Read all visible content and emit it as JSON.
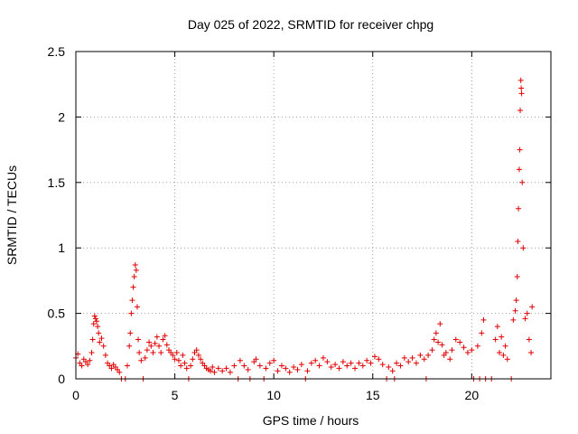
{
  "chart_data": {
    "type": "scatter",
    "title": "Day 025 of 2022, SRMTID for receiver chpg",
    "xlabel": "GPS time / hours",
    "ylabel": "SRMTID / TECUs",
    "xlim": [
      0,
      24
    ],
    "ylim": [
      0,
      2.5
    ],
    "x_ticks": [
      0,
      5,
      10,
      15,
      20
    ],
    "x_tick_labels": [
      "0",
      "5",
      "10",
      "15",
      "20"
    ],
    "y_ticks": [
      0,
      0.5,
      1,
      1.5,
      2,
      2.5
    ],
    "y_tick_labels": [
      "0",
      "0.5",
      "1",
      "1.5",
      "2",
      "2.5"
    ],
    "grid": true,
    "series": [
      {
        "name": "SRMTID",
        "color": "#e00000",
        "marker": "plus",
        "points": [
          [
            0.0,
            0.16
          ],
          [
            0.1,
            0.19
          ],
          [
            0.2,
            0.12
          ],
          [
            0.3,
            0.1
          ],
          [
            0.4,
            0.15
          ],
          [
            0.5,
            0.13
          ],
          [
            0.6,
            0.11
          ],
          [
            0.7,
            0.14
          ],
          [
            0.8,
            0.2
          ],
          [
            0.85,
            0.3
          ],
          [
            0.9,
            0.42
          ],
          [
            0.95,
            0.48
          ],
          [
            1.0,
            0.46
          ],
          [
            1.05,
            0.44
          ],
          [
            1.1,
            0.4
          ],
          [
            1.15,
            0.35
          ],
          [
            1.2,
            0.28
          ],
          [
            1.3,
            0.31
          ],
          [
            1.4,
            0.25
          ],
          [
            1.5,
            0.18
          ],
          [
            1.6,
            0.12
          ],
          [
            1.7,
            0.1
          ],
          [
            1.8,
            0.08
          ],
          [
            1.9,
            0.11
          ],
          [
            2.0,
            0.09
          ],
          [
            2.1,
            0.07
          ],
          [
            2.2,
            0.05
          ],
          [
            2.3,
            0.0
          ],
          [
            2.5,
            0.0
          ],
          [
            2.6,
            0.1
          ],
          [
            2.7,
            0.25
          ],
          [
            2.75,
            0.35
          ],
          [
            2.8,
            0.5
          ],
          [
            2.85,
            0.6
          ],
          [
            2.9,
            0.7
          ],
          [
            2.95,
            0.78
          ],
          [
            3.0,
            0.87
          ],
          [
            3.05,
            0.83
          ],
          [
            3.1,
            0.55
          ],
          [
            3.15,
            0.3
          ],
          [
            3.2,
            0.2
          ],
          [
            3.3,
            0.14
          ],
          [
            3.4,
            0.0
          ],
          [
            3.5,
            0.16
          ],
          [
            3.6,
            0.22
          ],
          [
            3.7,
            0.28
          ],
          [
            3.8,
            0.25
          ],
          [
            3.9,
            0.2
          ],
          [
            4.0,
            0.27
          ],
          [
            4.1,
            0.32
          ],
          [
            4.2,
            0.25
          ],
          [
            4.3,
            0.2
          ],
          [
            4.4,
            0.3
          ],
          [
            4.5,
            0.33
          ],
          [
            4.6,
            0.26
          ],
          [
            4.7,
            0.22
          ],
          [
            4.8,
            0.2
          ],
          [
            4.9,
            0.18
          ],
          [
            5.0,
            0.15
          ],
          [
            5.1,
            0.2
          ],
          [
            5.2,
            0.14
          ],
          [
            5.3,
            0.1
          ],
          [
            5.4,
            0.18
          ],
          [
            5.5,
            0.12
          ],
          [
            5.6,
            0.08
          ],
          [
            5.7,
            0.0
          ],
          [
            5.8,
            0.1
          ],
          [
            5.9,
            0.15
          ],
          [
            6.0,
            0.2
          ],
          [
            6.1,
            0.22
          ],
          [
            6.2,
            0.18
          ],
          [
            6.3,
            0.15
          ],
          [
            6.4,
            0.12
          ],
          [
            6.5,
            0.1
          ],
          [
            6.6,
            0.08
          ],
          [
            6.7,
            0.07
          ],
          [
            6.8,
            0.06
          ],
          [
            6.9,
            0.09
          ],
          [
            7.0,
            0.05
          ],
          [
            7.2,
            0.08
          ],
          [
            7.4,
            0.06
          ],
          [
            7.6,
            0.08
          ],
          [
            7.8,
            0.05
          ],
          [
            8.0,
            0.1
          ],
          [
            8.2,
            0.0
          ],
          [
            8.3,
            0.14
          ],
          [
            8.5,
            0.1
          ],
          [
            8.7,
            0.07
          ],
          [
            8.8,
            0.0
          ],
          [
            9.0,
            0.13
          ],
          [
            9.1,
            0.15
          ],
          [
            9.3,
            0.1
          ],
          [
            9.5,
            0.0
          ],
          [
            9.6,
            0.08
          ],
          [
            9.8,
            0.12
          ],
          [
            10.0,
            0.14
          ],
          [
            10.2,
            0.06
          ],
          [
            10.4,
            0.1
          ],
          [
            10.6,
            0.08
          ],
          [
            10.8,
            0.05
          ],
          [
            11.0,
            0.09
          ],
          [
            11.2,
            0.07
          ],
          [
            11.4,
            0.11
          ],
          [
            11.6,
            0.0
          ],
          [
            11.7,
            0.06
          ],
          [
            11.9,
            0.12
          ],
          [
            12.1,
            0.14
          ],
          [
            12.3,
            0.1
          ],
          [
            12.5,
            0.16
          ],
          [
            12.7,
            0.13
          ],
          [
            12.9,
            0.09
          ],
          [
            13.1,
            0.11
          ],
          [
            13.3,
            0.08
          ],
          [
            13.5,
            0.13
          ],
          [
            13.7,
            0.1
          ],
          [
            13.9,
            0.12
          ],
          [
            14.1,
            0.08
          ],
          [
            14.3,
            0.12
          ],
          [
            14.5,
            0.1
          ],
          [
            14.7,
            0.14
          ],
          [
            14.9,
            0.12
          ],
          [
            15.1,
            0.17
          ],
          [
            15.3,
            0.15
          ],
          [
            15.5,
            0.11
          ],
          [
            15.7,
            0.0
          ],
          [
            15.8,
            0.09
          ],
          [
            16.0,
            0.06
          ],
          [
            16.1,
            0.0
          ],
          [
            16.2,
            0.12
          ],
          [
            16.4,
            0.1
          ],
          [
            16.6,
            0.16
          ],
          [
            16.8,
            0.13
          ],
          [
            17.0,
            0.16
          ],
          [
            17.2,
            0.12
          ],
          [
            17.4,
            0.18
          ],
          [
            17.6,
            0.15
          ],
          [
            17.7,
            0.0
          ],
          [
            17.8,
            0.18
          ],
          [
            18.0,
            0.22
          ],
          [
            18.1,
            0.3
          ],
          [
            18.2,
            0.35
          ],
          [
            18.3,
            0.28
          ],
          [
            18.4,
            0.42
          ],
          [
            18.5,
            0.26
          ],
          [
            18.6,
            0.18
          ],
          [
            18.7,
            0.2
          ],
          [
            18.9,
            0.15
          ],
          [
            19.0,
            0.22
          ],
          [
            19.2,
            0.3
          ],
          [
            19.4,
            0.28
          ],
          [
            19.6,
            0.24
          ],
          [
            19.8,
            0.2
          ],
          [
            20.0,
            0.22
          ],
          [
            20.1,
            0.0
          ],
          [
            20.3,
            0.25
          ],
          [
            20.4,
            0.0
          ],
          [
            20.5,
            0.35
          ],
          [
            20.6,
            0.45
          ],
          [
            20.7,
            0.0
          ],
          [
            21.0,
            0.0
          ],
          [
            21.2,
            0.3
          ],
          [
            21.3,
            0.4
          ],
          [
            21.4,
            0.2
          ],
          [
            21.5,
            0.32
          ],
          [
            21.6,
            0.18
          ],
          [
            21.7,
            0.25
          ],
          [
            21.8,
            0.15
          ],
          [
            22.0,
            0.0
          ],
          [
            22.1,
            0.45
          ],
          [
            22.2,
            0.52
          ],
          [
            22.25,
            0.6
          ],
          [
            22.3,
            0.78
          ],
          [
            22.33,
            1.05
          ],
          [
            22.36,
            1.3
          ],
          [
            22.4,
            1.6
          ],
          [
            22.43,
            1.75
          ],
          [
            22.45,
            2.05
          ],
          [
            22.48,
            2.28
          ],
          [
            22.5,
            2.22
          ],
          [
            22.52,
            2.18
          ],
          [
            22.55,
            1.5
          ],
          [
            22.6,
            1.0
          ],
          [
            22.7,
            0.46
          ],
          [
            22.8,
            0.5
          ],
          [
            22.9,
            0.3
          ],
          [
            23.0,
            0.2
          ],
          [
            23.05,
            0.55
          ]
        ]
      }
    ]
  }
}
